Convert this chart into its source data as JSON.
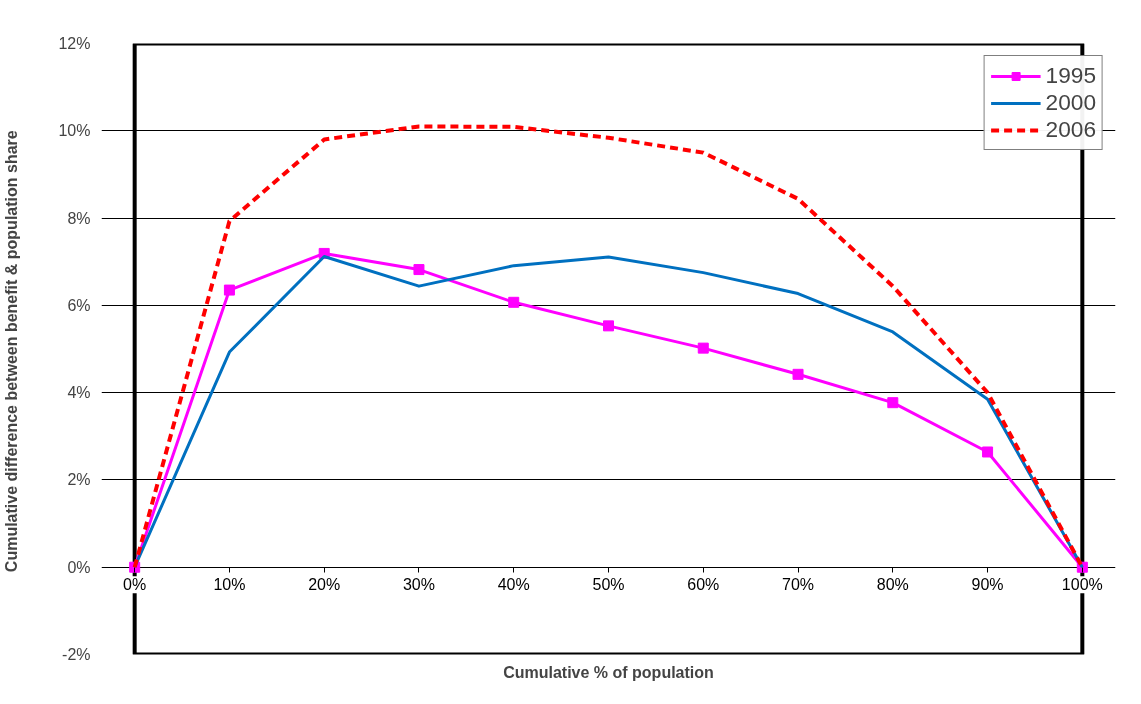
{
  "chart_data": {
    "type": "line",
    "xlabel": "Cumulative % of population",
    "ylabel": "Cumulative difference between  benefit & population share",
    "x": [
      0,
      10,
      20,
      30,
      40,
      50,
      60,
      70,
      80,
      90,
      100
    ],
    "xlim": [
      0,
      100
    ],
    "xticks": [
      {
        "value": 0,
        "label": "0%"
      },
      {
        "value": 10,
        "label": "10%"
      },
      {
        "value": 20,
        "label": "20%"
      },
      {
        "value": 30,
        "label": "30%"
      },
      {
        "value": 40,
        "label": "40%"
      },
      {
        "value": 50,
        "label": "50%"
      },
      {
        "value": 60,
        "label": "60%"
      },
      {
        "value": 70,
        "label": "70%"
      },
      {
        "value": 80,
        "label": "80%"
      },
      {
        "value": 90,
        "label": "90%"
      },
      {
        "value": 100,
        "label": "100%"
      }
    ],
    "ylim": [
      -2,
      12
    ],
    "yticks": [
      {
        "value": -2,
        "label": "-2%"
      },
      {
        "value": 0,
        "label": "0%"
      },
      {
        "value": 2,
        "label": "2%"
      },
      {
        "value": 4,
        "label": "4%"
      },
      {
        "value": 6,
        "label": "6%"
      },
      {
        "value": 8,
        "label": "8%"
      },
      {
        "value": 10,
        "label": "10%"
      },
      {
        "value": 12,
        "label": "12%"
      }
    ],
    "grid": "y",
    "legend": "top right",
    "series": [
      {
        "name": "1995",
        "color": "#ff00ff",
        "marker": "square",
        "line_style": "solid",
        "values": [
          0,
          6.35,
          7.19,
          6.82,
          6.07,
          5.53,
          5.02,
          4.42,
          3.77,
          2.64,
          0
        ]
      },
      {
        "name": "2000",
        "color": "#0070c0",
        "marker": "none",
        "line_style": "solid",
        "values": [
          0,
          4.93,
          7.12,
          6.44,
          6.91,
          7.11,
          6.75,
          6.27,
          5.39,
          3.85,
          0
        ]
      },
      {
        "name": "2006",
        "color": "#ff0000",
        "marker": "none",
        "line_style": "dashed",
        "values": [
          0,
          7.93,
          9.8,
          10.1,
          10.09,
          9.84,
          9.5,
          8.44,
          6.44,
          4.0,
          0
        ]
      }
    ]
  }
}
